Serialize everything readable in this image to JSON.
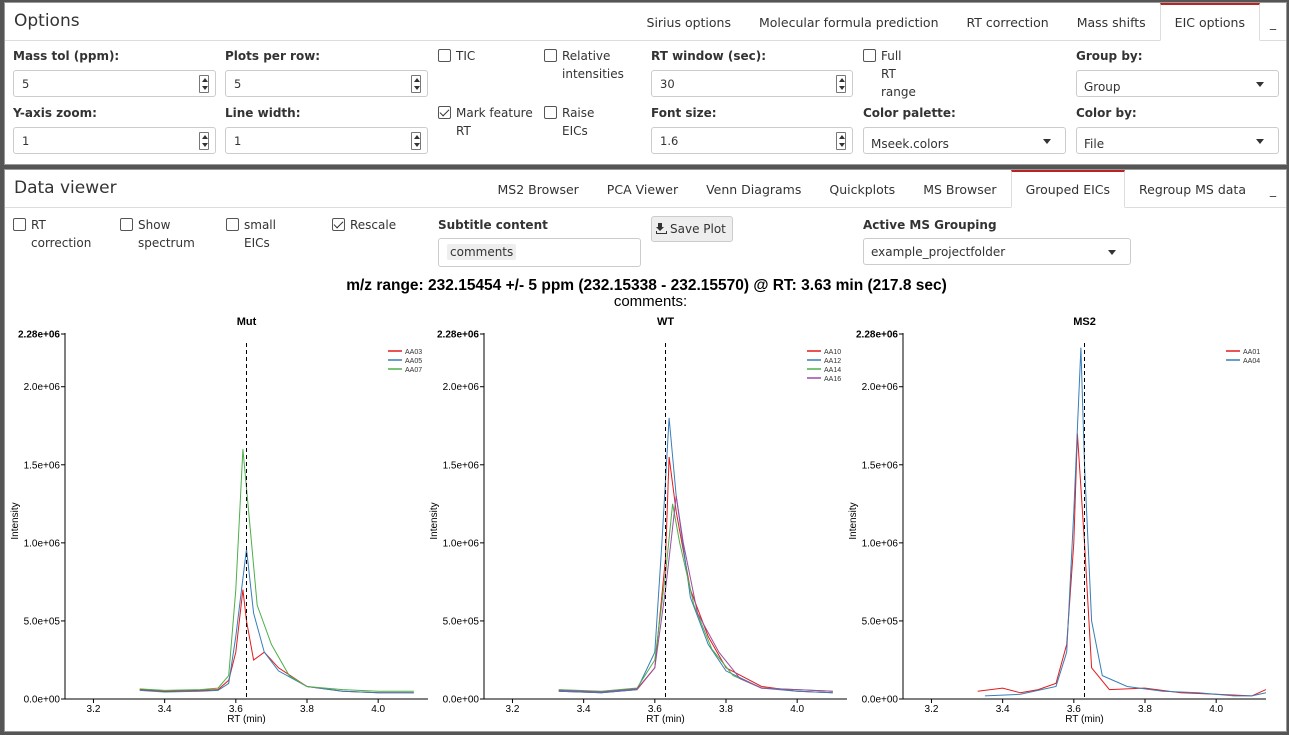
{
  "options": {
    "title": "Options",
    "tabs": [
      "Sirius options",
      "Molecular formula prediction",
      "RT correction",
      "Mass shifts",
      "EIC options"
    ],
    "active_tab": "EIC options",
    "minimize": "_",
    "mass_tol": {
      "label": "Mass tol (ppm):",
      "value": "5"
    },
    "plots_per_row": {
      "label": "Plots per row:",
      "value": "5"
    },
    "tic": {
      "label": "TIC",
      "checked": false
    },
    "relative": {
      "label_1": "Relative",
      "label_2": "intensities",
      "checked": false
    },
    "rt_window": {
      "label": "RT window (sec):",
      "value": "30"
    },
    "full_rt": {
      "label": "Full RT range",
      "checked": false
    },
    "group_by": {
      "label": "Group by:",
      "value": "Group"
    },
    "y_zoom": {
      "label": "Y-axis zoom:",
      "value": "1"
    },
    "line_width": {
      "label": "Line width:",
      "value": "1"
    },
    "mark_rt": {
      "label_1": "Mark feature",
      "label_2": "RT",
      "checked": true
    },
    "raise_eics": {
      "label": "Raise EICs",
      "checked": false
    },
    "font_size": {
      "label": "Font size:",
      "value": "1.6"
    },
    "color_palette": {
      "label": "Color palette:",
      "value": "Mseek.colors"
    },
    "color_by": {
      "label": "Color by:",
      "value": "File"
    }
  },
  "viewer": {
    "title": "Data viewer",
    "tabs": [
      "MS2 Browser",
      "PCA Viewer",
      "Venn Diagrams",
      "Quickplots",
      "MS Browser",
      "Grouped EICs",
      "Regroup MS data"
    ],
    "active_tab": "Grouped EICs",
    "minimize": "_",
    "rt_correction": {
      "label": "RT correction",
      "checked": false
    },
    "show_spectrum": {
      "label_1": "Show",
      "label_2": "spectrum",
      "checked": false
    },
    "small_eics": {
      "label": "small EICs",
      "checked": false
    },
    "rescale": {
      "label": "Rescale",
      "checked": true
    },
    "subtitle_content": {
      "label": "Subtitle content",
      "chip": "comments"
    },
    "save_plot": "Save Plot",
    "ms_grouping": {
      "label": "Active MS Grouping",
      "value": "example_projectfolder"
    },
    "plot_title": "m/z range: 232.15454 +/- 5 ppm (232.15338 - 232.15570) @ RT: 3.63 min (217.8 sec)",
    "plot_subtitle": "comments:"
  },
  "chart_data": [
    {
      "type": "line",
      "title": "Mut",
      "xlabel": "RT (min)",
      "ylabel": "Intensity",
      "xlim": [
        3.12,
        4.14
      ],
      "ylim": [
        0,
        2280000
      ],
      "x_ticks": [
        3.2,
        3.4,
        3.6,
        3.8,
        4.0
      ],
      "y_ticks": [
        "0.0e+00",
        "5.0e+05",
        "1.0e+06",
        "1.5e+06",
        "2.0e+06",
        "2.28e+06"
      ],
      "feature_rt": 3.63,
      "legend_position": "top-right",
      "grid": false,
      "series": [
        {
          "name": "AA03",
          "color": "#e41a1c",
          "points": [
            [
              3.33,
              60000
            ],
            [
              3.4,
              50000
            ],
            [
              3.5,
              55000
            ],
            [
              3.55,
              60000
            ],
            [
              3.58,
              120000
            ],
            [
              3.6,
              300000
            ],
            [
              3.62,
              700000
            ],
            [
              3.63,
              500000
            ],
            [
              3.65,
              250000
            ],
            [
              3.68,
              300000
            ],
            [
              3.72,
              200000
            ],
            [
              3.8,
              80000
            ],
            [
              3.9,
              50000
            ],
            [
              4.0,
              40000
            ],
            [
              4.1,
              40000
            ]
          ]
        },
        {
          "name": "AA05",
          "color": "#377eb8",
          "points": [
            [
              3.33,
              55000
            ],
            [
              3.4,
              45000
            ],
            [
              3.5,
              50000
            ],
            [
              3.55,
              55000
            ],
            [
              3.58,
              100000
            ],
            [
              3.6,
              400000
            ],
            [
              3.63,
              960000
            ],
            [
              3.65,
              550000
            ],
            [
              3.68,
              300000
            ],
            [
              3.72,
              180000
            ],
            [
              3.8,
              80000
            ],
            [
              3.9,
              50000
            ],
            [
              4.0,
              40000
            ],
            [
              4.1,
              40000
            ]
          ]
        },
        {
          "name": "AA07",
          "color": "#4daf4a",
          "points": [
            [
              3.33,
              65000
            ],
            [
              3.4,
              55000
            ],
            [
              3.5,
              60000
            ],
            [
              3.55,
              70000
            ],
            [
              3.58,
              150000
            ],
            [
              3.6,
              700000
            ],
            [
              3.62,
              1600000
            ],
            [
              3.64,
              1100000
            ],
            [
              3.66,
              600000
            ],
            [
              3.7,
              350000
            ],
            [
              3.75,
              150000
            ],
            [
              3.8,
              80000
            ],
            [
              3.9,
              60000
            ],
            [
              4.0,
              50000
            ],
            [
              4.1,
              50000
            ]
          ]
        }
      ]
    },
    {
      "type": "line",
      "title": "WT",
      "xlabel": "RT (min)",
      "ylabel": "Intensity",
      "xlim": [
        3.12,
        4.14
      ],
      "ylim": [
        0,
        2280000
      ],
      "x_ticks": [
        3.2,
        3.4,
        3.6,
        3.8,
        4.0
      ],
      "y_ticks": [
        "0.0e+00",
        "5.0e+05",
        "1.0e+06",
        "1.5e+06",
        "2.0e+06",
        "2.28e+06"
      ],
      "feature_rt": 3.63,
      "legend_position": "top-right",
      "grid": false,
      "series": [
        {
          "name": "AA10",
          "color": "#e41a1c",
          "points": [
            [
              3.33,
              50000
            ],
            [
              3.45,
              40000
            ],
            [
              3.55,
              60000
            ],
            [
              3.6,
              200000
            ],
            [
              3.63,
              900000
            ],
            [
              3.64,
              1550000
            ],
            [
              3.66,
              1200000
            ],
            [
              3.7,
              700000
            ],
            [
              3.75,
              400000
            ],
            [
              3.8,
              200000
            ],
            [
              3.9,
              80000
            ],
            [
              4.0,
              50000
            ],
            [
              4.1,
              40000
            ]
          ]
        },
        {
          "name": "AA12",
          "color": "#377eb8",
          "points": [
            [
              3.33,
              50000
            ],
            [
              3.45,
              40000
            ],
            [
              3.55,
              60000
            ],
            [
              3.6,
              300000
            ],
            [
              3.62,
              1000000
            ],
            [
              3.64,
              1800000
            ],
            [
              3.66,
              1300000
            ],
            [
              3.7,
              650000
            ],
            [
              3.75,
              350000
            ],
            [
              3.8,
              180000
            ],
            [
              3.9,
              70000
            ],
            [
              4.0,
              50000
            ],
            [
              4.1,
              40000
            ]
          ]
        },
        {
          "name": "AA14",
          "color": "#4daf4a",
          "points": [
            [
              3.33,
              60000
            ],
            [
              3.45,
              50000
            ],
            [
              3.55,
              70000
            ],
            [
              3.6,
              250000
            ],
            [
              3.63,
              800000
            ],
            [
              3.65,
              1250000
            ],
            [
              3.67,
              1000000
            ],
            [
              3.71,
              600000
            ],
            [
              3.76,
              320000
            ],
            [
              3.82,
              150000
            ],
            [
              3.9,
              70000
            ],
            [
              4.0,
              60000
            ],
            [
              4.1,
              50000
            ]
          ]
        },
        {
          "name": "AA16",
          "color": "#984ea3",
          "points": [
            [
              3.33,
              55000
            ],
            [
              3.45,
              45000
            ],
            [
              3.55,
              65000
            ],
            [
              3.6,
              200000
            ],
            [
              3.63,
              700000
            ],
            [
              3.66,
              1300000
            ],
            [
              3.68,
              1000000
            ],
            [
              3.72,
              550000
            ],
            [
              3.78,
              300000
            ],
            [
              3.84,
              130000
            ],
            [
              3.9,
              70000
            ],
            [
              4.0,
              60000
            ],
            [
              4.1,
              50000
            ]
          ]
        }
      ]
    },
    {
      "type": "line",
      "title": "MS2",
      "xlabel": "RT (min)",
      "ylabel": "Intensity",
      "xlim": [
        3.12,
        4.14
      ],
      "ylim": [
        0,
        2280000
      ],
      "x_ticks": [
        3.2,
        3.4,
        3.6,
        3.8,
        4.0
      ],
      "y_ticks": [
        "0.0e+00",
        "5.0e+05",
        "1.0e+06",
        "1.5e+06",
        "2.0e+06",
        "2.28e+06"
      ],
      "feature_rt": 3.63,
      "legend_position": "top-right",
      "grid": false,
      "series": [
        {
          "name": "AA01",
          "color": "#e41a1c",
          "points": [
            [
              3.33,
              50000
            ],
            [
              3.4,
              70000
            ],
            [
              3.45,
              40000
            ],
            [
              3.5,
              60000
            ],
            [
              3.55,
              100000
            ],
            [
              3.58,
              350000
            ],
            [
              3.6,
              1000000
            ],
            [
              3.61,
              1700000
            ],
            [
              3.63,
              1000000
            ],
            [
              3.65,
              200000
            ],
            [
              3.7,
              60000
            ],
            [
              3.8,
              70000
            ],
            [
              3.9,
              40000
            ],
            [
              4.0,
              30000
            ],
            [
              4.1,
              20000
            ],
            [
              4.14,
              60000
            ]
          ]
        },
        {
          "name": "AA04",
          "color": "#377eb8",
          "points": [
            [
              3.35,
              20000
            ],
            [
              3.45,
              30000
            ],
            [
              3.55,
              80000
            ],
            [
              3.58,
              300000
            ],
            [
              3.6,
              1200000
            ],
            [
              3.62,
              2250000
            ],
            [
              3.63,
              1500000
            ],
            [
              3.65,
              500000
            ],
            [
              3.68,
              150000
            ],
            [
              3.75,
              80000
            ],
            [
              3.85,
              50000
            ],
            [
              3.95,
              40000
            ],
            [
              4.05,
              20000
            ],
            [
              4.1,
              20000
            ],
            [
              4.14,
              40000
            ]
          ]
        }
      ]
    }
  ]
}
